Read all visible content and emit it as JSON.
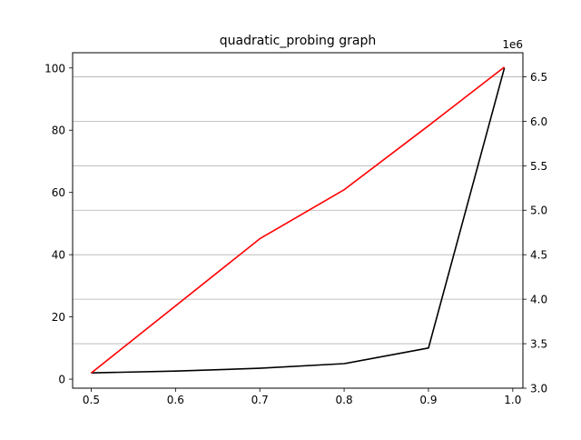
{
  "chart_data": {
    "type": "line",
    "title": "quadratic_probing graph",
    "xlabel": "",
    "ylabel": "",
    "xlim": [
      0.478,
      1.012
    ],
    "xticks": [
      0.5,
      0.6,
      0.7,
      0.8,
      0.9,
      1.0
    ],
    "xtick_labels": [
      "0.5",
      "0.6",
      "0.7",
      "0.8",
      "0.9",
      "1.0"
    ],
    "left_axis": {
      "ylim": [
        -2.9,
        104.9
      ],
      "ticks": [
        0,
        20,
        40,
        60,
        80,
        100
      ],
      "tick_labels": [
        "0",
        "20",
        "40",
        "60",
        "80",
        "100"
      ],
      "grid": false
    },
    "right_axis": {
      "ylim": [
        3.0,
        6.77
      ],
      "ticks": [
        3.0,
        3.5,
        4.0,
        4.5,
        5.0,
        5.5,
        6.0,
        6.5
      ],
      "tick_labels": [
        "3.0",
        "3.5",
        "4.0",
        "4.5",
        "5.0",
        "5.5",
        "6.0",
        "6.5"
      ],
      "offset_label": "1e6",
      "grid": true
    },
    "series": [
      {
        "axis": "left",
        "color": "#000000",
        "x": [
          0.5,
          0.6,
          0.7,
          0.8,
          0.9,
          0.99
        ],
        "y": [
          2,
          2.6,
          3.5,
          5,
          10,
          100
        ]
      },
      {
        "axis": "right",
        "color": "#ff0000",
        "x": [
          0.5,
          0.7,
          0.8,
          0.9,
          0.99
        ],
        "y": [
          3.17,
          4.68,
          5.23,
          5.95,
          6.61
        ]
      }
    ]
  }
}
